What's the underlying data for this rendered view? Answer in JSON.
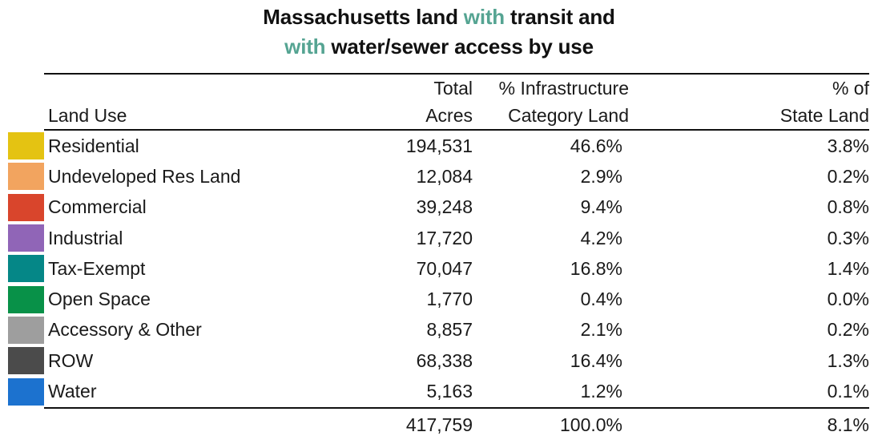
{
  "title": {
    "line1": {
      "pre": "Massachusetts land ",
      "accent": "with",
      "post": " transit and"
    },
    "line2": {
      "accent": "with",
      "post": " water/sewer access by use"
    },
    "accent_color": "#55a492"
  },
  "table": {
    "headers": {
      "land_use": {
        "line1": "",
        "line2": "Land Use"
      },
      "acres": {
        "line1": "Total",
        "line2": "Acres"
      },
      "infra": {
        "line1": "% Infrastructure",
        "line2": "Category Land"
      },
      "state": {
        "line1": "% of",
        "line2": "State Land"
      }
    },
    "rows": [
      {
        "label": "Residential",
        "color": "#e4c312",
        "acres": "194,531",
        "infra": "46.6%",
        "state": "3.8%"
      },
      {
        "label": "Undeveloped Res Land",
        "color": "#f2a45f",
        "acres": "12,084",
        "infra": "2.9%",
        "state": "0.2%"
      },
      {
        "label": "Commercial",
        "color": "#d9452c",
        "acres": "39,248",
        "infra": "9.4%",
        "state": "0.8%"
      },
      {
        "label": "Industrial",
        "color": "#9065b7",
        "acres": "17,720",
        "infra": "4.2%",
        "state": "0.3%"
      },
      {
        "label": "Tax-Exempt",
        "color": "#058787",
        "acres": "70,047",
        "infra": "16.8%",
        "state": "1.4%"
      },
      {
        "label": "Open Space",
        "color": "#089148",
        "acres": "1,770",
        "infra": "0.4%",
        "state": "0.0%"
      },
      {
        "label": "Accessory & Other",
        "color": "#9e9e9e",
        "acres": "8,857",
        "infra": "2.1%",
        "state": "0.2%"
      },
      {
        "label": "ROW",
        "color": "#4b4b4b",
        "acres": "68,338",
        "infra": "16.4%",
        "state": "1.3%"
      },
      {
        "label": "Water",
        "color": "#1c72cf",
        "acres": "5,163",
        "infra": "1.2%",
        "state": "0.1%"
      }
    ],
    "total": {
      "acres": "417,759",
      "infra": "100.0%",
      "state": "8.1%"
    }
  },
  "chart_data": {
    "type": "table",
    "title": "Massachusetts land with transit and with water/sewer access by use",
    "columns": [
      "Land Use",
      "Total Acres",
      "% Infrastructure Category Land",
      "% of State Land"
    ],
    "rows": [
      [
        "Residential",
        194531,
        46.6,
        3.8
      ],
      [
        "Undeveloped Res Land",
        12084,
        2.9,
        0.2
      ],
      [
        "Commercial",
        39248,
        9.4,
        0.8
      ],
      [
        "Industrial",
        17720,
        4.2,
        0.3
      ],
      [
        "Tax-Exempt",
        70047,
        16.8,
        1.4
      ],
      [
        "Open Space",
        1770,
        0.4,
        0.0
      ],
      [
        "Accessory & Other",
        8857,
        2.1,
        0.2
      ],
      [
        "ROW",
        68338,
        16.4,
        1.3
      ],
      [
        "Water",
        5163,
        1.2,
        0.1
      ]
    ],
    "total_row": [
      "Total",
      417759,
      100.0,
      8.1
    ],
    "row_colors": [
      "#e4c312",
      "#f2a45f",
      "#d9452c",
      "#9065b7",
      "#058787",
      "#089148",
      "#9e9e9e",
      "#4b4b4b",
      "#1c72cf"
    ],
    "accent_color": "#55a492",
    "layout": {
      "legend_position": "left-swatches",
      "grid": "horizontal-rules-only"
    }
  }
}
